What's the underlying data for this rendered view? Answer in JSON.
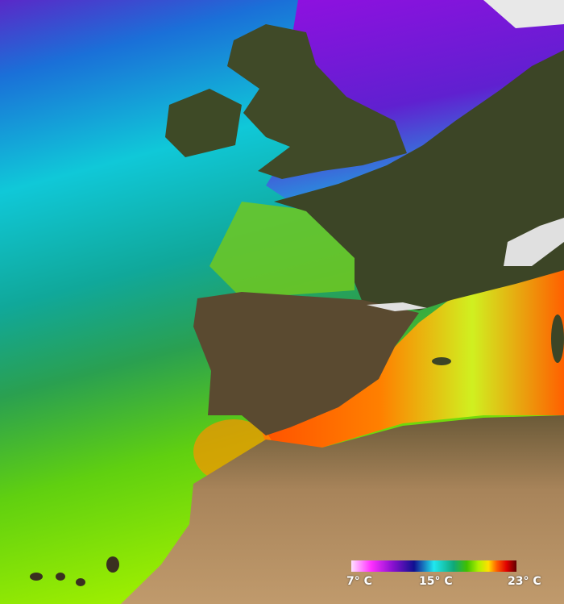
{
  "map": {
    "subject": "sea surface temperature",
    "legend": {
      "labels": [
        "7° C",
        "15° C",
        "23° C"
      ],
      "colors": [
        "#ffe0ff",
        "#ff30ff",
        "#8a10d0",
        "#101090",
        "#20e8f0",
        "#10a878",
        "#40c000",
        "#b0f000",
        "#ffe000",
        "#ff6000",
        "#e00000",
        "#600000"
      ]
    }
  }
}
